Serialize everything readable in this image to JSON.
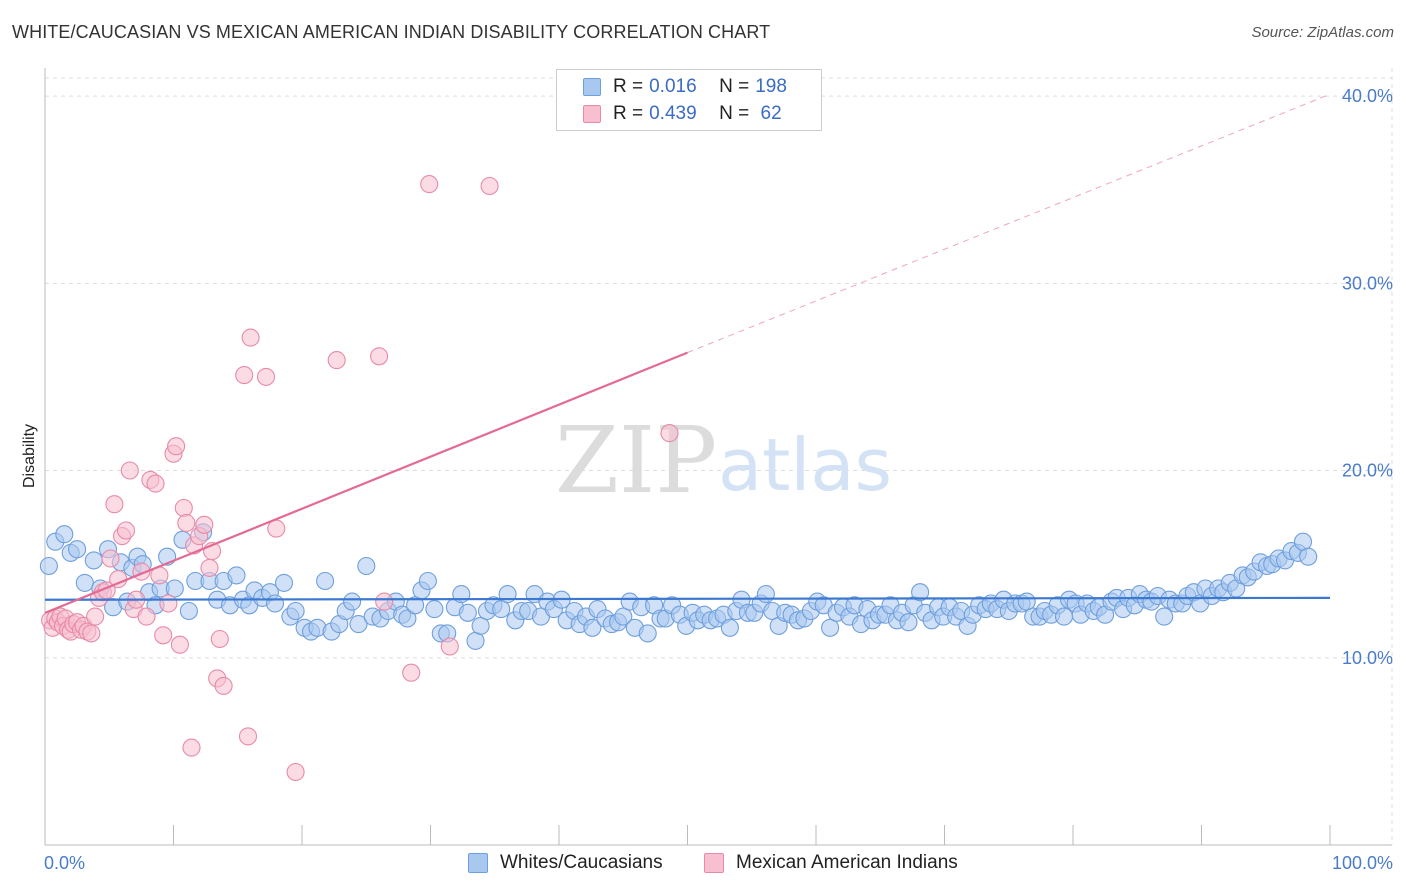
{
  "header": {
    "title": "WHITE/CAUCASIAN VS MEXICAN AMERICAN INDIAN DISABILITY CORRELATION CHART",
    "source": "Source: ZipAtlas.com"
  },
  "watermark": {
    "zip": "ZIP",
    "atlas": "atlas"
  },
  "legend": {
    "rows": [
      {
        "r_label": "R = ",
        "r_value": "0.016",
        "n_label": "N = ",
        "n_value": "198",
        "color": "#a9c8f0",
        "border": "#6f9fdc"
      },
      {
        "r_label": "R = ",
        "r_value": "0.439",
        "n_label": "N = ",
        "n_value": " 62",
        "color": "#f8bfd0",
        "border": "#e88aa8"
      }
    ]
  },
  "bottom_legend": {
    "items": [
      {
        "label": "Whites/Caucasians",
        "color": "#a9c8f0",
        "border": "#6f9fdc"
      },
      {
        "label": "Mexican American Indians",
        "color": "#f8bfd0",
        "border": "#e88aa8"
      }
    ]
  },
  "chart_data": {
    "type": "scatter",
    "title": "WHITE/CAUCASIAN VS MEXICAN AMERICAN INDIAN DISABILITY CORRELATION CHART",
    "xlabel": "",
    "ylabel": "Disability",
    "xlim": [
      0,
      100
    ],
    "ylim": [
      0,
      41.5
    ],
    "x_tick_labels": [
      "0.0%",
      "100.0%"
    ],
    "y_ticks": [
      10,
      20,
      30,
      40
    ],
    "y_tick_labels": [
      "10.0%",
      "20.0%",
      "30.0%",
      "40.0%"
    ],
    "grid": true,
    "series": [
      {
        "name": "Whites/Caucasians",
        "color": "#a9c8f0",
        "edge": "#6f9fdc",
        "line_color": "#3b78d1",
        "trend": {
          "x0": 0,
          "y0": 13.1,
          "x1": 100,
          "y1": 13.2
        },
        "points": [
          [
            0.3,
            14.9
          ],
          [
            0.8,
            16.2
          ],
          [
            1.5,
            16.6
          ],
          [
            2.0,
            15.6
          ],
          [
            2.5,
            15.8
          ],
          [
            3.1,
            14.0
          ],
          [
            3.8,
            15.2
          ],
          [
            4.3,
            13.7
          ],
          [
            4.9,
            15.8
          ],
          [
            5.3,
            12.7
          ],
          [
            5.9,
            15.1
          ],
          [
            6.4,
            13.0
          ],
          [
            6.8,
            14.8
          ],
          [
            7.2,
            15.4
          ],
          [
            7.6,
            15.0
          ],
          [
            8.1,
            13.5
          ],
          [
            8.6,
            12.8
          ],
          [
            9.0,
            13.7
          ],
          [
            9.5,
            15.4
          ],
          [
            10.1,
            13.7
          ],
          [
            10.7,
            16.3
          ],
          [
            11.2,
            12.5
          ],
          [
            11.7,
            14.1
          ],
          [
            12.3,
            16.7
          ],
          [
            12.8,
            14.1
          ],
          [
            13.4,
            13.1
          ],
          [
            13.9,
            14.1
          ],
          [
            14.4,
            12.8
          ],
          [
            14.9,
            14.4
          ],
          [
            15.4,
            13.1
          ],
          [
            15.9,
            12.8
          ],
          [
            16.3,
            13.6
          ],
          [
            16.9,
            13.2
          ],
          [
            17.5,
            13.5
          ],
          [
            17.9,
            12.9
          ],
          [
            18.6,
            14.0
          ],
          [
            19.1,
            12.2
          ],
          [
            19.5,
            12.5
          ],
          [
            20.2,
            11.6
          ],
          [
            20.7,
            11.4
          ],
          [
            21.2,
            11.6
          ],
          [
            21.8,
            14.1
          ],
          [
            22.3,
            11.4
          ],
          [
            22.9,
            11.8
          ],
          [
            23.4,
            12.5
          ],
          [
            23.9,
            13.0
          ],
          [
            24.4,
            11.8
          ],
          [
            25.0,
            14.9
          ],
          [
            25.5,
            12.2
          ],
          [
            26.1,
            12.1
          ],
          [
            26.7,
            12.5
          ],
          [
            27.3,
            13.0
          ],
          [
            27.8,
            12.3
          ],
          [
            28.2,
            12.1
          ],
          [
            28.8,
            12.8
          ],
          [
            29.3,
            13.6
          ],
          [
            29.8,
            14.1
          ],
          [
            30.3,
            12.6
          ],
          [
            30.8,
            11.3
          ],
          [
            31.3,
            11.3
          ],
          [
            31.9,
            12.7
          ],
          [
            32.4,
            13.4
          ],
          [
            32.9,
            12.4
          ],
          [
            33.5,
            10.9
          ],
          [
            33.9,
            11.7
          ],
          [
            34.4,
            12.5
          ],
          [
            34.9,
            12.8
          ],
          [
            35.5,
            12.6
          ],
          [
            36.0,
            13.4
          ],
          [
            36.6,
            12.0
          ],
          [
            37.1,
            12.5
          ],
          [
            37.6,
            12.5
          ],
          [
            38.1,
            13.4
          ],
          [
            38.6,
            12.2
          ],
          [
            39.1,
            13.0
          ],
          [
            39.6,
            12.6
          ],
          [
            40.2,
            13.1
          ],
          [
            40.6,
            12.0
          ],
          [
            41.2,
            12.5
          ],
          [
            41.6,
            11.8
          ],
          [
            42.1,
            12.2
          ],
          [
            42.6,
            11.6
          ],
          [
            43.0,
            12.6
          ],
          [
            43.6,
            12.1
          ],
          [
            44.1,
            11.8
          ],
          [
            44.6,
            11.9
          ],
          [
            45.0,
            12.2
          ],
          [
            45.5,
            13.0
          ],
          [
            45.9,
            11.6
          ],
          [
            46.4,
            12.7
          ],
          [
            46.9,
            11.3
          ],
          [
            47.4,
            12.8
          ],
          [
            47.9,
            12.1
          ],
          [
            48.3,
            12.1
          ],
          [
            48.8,
            12.8
          ],
          [
            49.4,
            12.3
          ],
          [
            49.9,
            11.7
          ],
          [
            50.4,
            12.4
          ],
          [
            50.8,
            12.0
          ],
          [
            51.3,
            12.3
          ],
          [
            51.8,
            12.0
          ],
          [
            52.3,
            12.1
          ],
          [
            52.8,
            12.3
          ],
          [
            53.3,
            11.6
          ],
          [
            53.8,
            12.5
          ],
          [
            54.2,
            13.1
          ],
          [
            54.7,
            12.4
          ],
          [
            55.2,
            12.4
          ],
          [
            55.7,
            12.9
          ],
          [
            56.1,
            13.4
          ],
          [
            56.6,
            12.5
          ],
          [
            57.1,
            11.7
          ],
          [
            57.6,
            12.4
          ],
          [
            58.1,
            12.3
          ],
          [
            58.6,
            12.0
          ],
          [
            59.1,
            12.1
          ],
          [
            59.6,
            12.5
          ],
          [
            60.1,
            13.0
          ],
          [
            60.6,
            12.8
          ],
          [
            61.1,
            11.6
          ],
          [
            61.6,
            12.4
          ],
          [
            62.1,
            12.7
          ],
          [
            62.6,
            12.2
          ],
          [
            63.0,
            12.8
          ],
          [
            63.5,
            11.8
          ],
          [
            64.0,
            12.6
          ],
          [
            64.4,
            12.0
          ],
          [
            64.9,
            12.3
          ],
          [
            65.4,
            12.3
          ],
          [
            65.8,
            12.8
          ],
          [
            66.3,
            12.0
          ],
          [
            66.7,
            12.4
          ],
          [
            67.2,
            11.9
          ],
          [
            67.6,
            12.8
          ],
          [
            68.1,
            13.5
          ],
          [
            68.5,
            12.4
          ],
          [
            69.0,
            12.0
          ],
          [
            69.5,
            12.7
          ],
          [
            69.9,
            12.2
          ],
          [
            70.4,
            12.7
          ],
          [
            70.9,
            12.2
          ],
          [
            71.3,
            12.5
          ],
          [
            71.8,
            11.7
          ],
          [
            72.2,
            12.3
          ],
          [
            72.7,
            12.8
          ],
          [
            73.2,
            12.6
          ],
          [
            73.6,
            12.9
          ],
          [
            74.1,
            12.6
          ],
          [
            74.6,
            13.1
          ],
          [
            75.0,
            12.5
          ],
          [
            75.5,
            12.9
          ],
          [
            76.0,
            12.9
          ],
          [
            76.4,
            13.0
          ],
          [
            76.9,
            12.2
          ],
          [
            77.4,
            12.2
          ],
          [
            77.8,
            12.5
          ],
          [
            78.3,
            12.3
          ],
          [
            78.8,
            12.8
          ],
          [
            79.3,
            12.2
          ],
          [
            79.7,
            13.1
          ],
          [
            80.2,
            12.9
          ],
          [
            80.6,
            12.3
          ],
          [
            81.1,
            12.9
          ],
          [
            81.6,
            12.5
          ],
          [
            82.0,
            12.7
          ],
          [
            82.5,
            12.3
          ],
          [
            83.0,
            13.0
          ],
          [
            83.4,
            13.2
          ],
          [
            83.9,
            12.6
          ],
          [
            84.3,
            13.2
          ],
          [
            84.8,
            12.8
          ],
          [
            85.2,
            13.4
          ],
          [
            85.7,
            13.1
          ],
          [
            86.1,
            13.0
          ],
          [
            86.6,
            13.3
          ],
          [
            87.1,
            12.2
          ],
          [
            87.5,
            13.1
          ],
          [
            88.0,
            12.9
          ],
          [
            88.5,
            12.9
          ],
          [
            88.9,
            13.3
          ],
          [
            89.4,
            13.5
          ],
          [
            89.9,
            12.9
          ],
          [
            90.3,
            13.7
          ],
          [
            90.8,
            13.3
          ],
          [
            91.3,
            13.7
          ],
          [
            91.7,
            13.5
          ],
          [
            92.2,
            14.0
          ],
          [
            92.7,
            13.7
          ],
          [
            93.2,
            14.4
          ],
          [
            93.6,
            14.3
          ],
          [
            94.1,
            14.6
          ],
          [
            94.6,
            15.1
          ],
          [
            95.1,
            14.9
          ],
          [
            95.5,
            15.0
          ],
          [
            96.0,
            15.3
          ],
          [
            96.5,
            15.2
          ],
          [
            97.0,
            15.7
          ],
          [
            97.5,
            15.6
          ],
          [
            97.9,
            16.2
          ],
          [
            98.3,
            15.4
          ]
        ]
      },
      {
        "name": "Mexican American Indians",
        "color": "#f8bfd0",
        "edge": "#e88aa8",
        "line_color": "#e36a95",
        "trend": {
          "x0": 0,
          "y0": 12.4,
          "x1": 50,
          "y1": 26.3,
          "x_dash_end": 100,
          "y_dash_end": 40.1
        },
        "points": [
          [
            0.4,
            12.0
          ],
          [
            0.6,
            11.6
          ],
          [
            0.8,
            12.1
          ],
          [
            1.0,
            11.9
          ],
          [
            1.2,
            12.2
          ],
          [
            1.4,
            11.7
          ],
          [
            1.6,
            12.1
          ],
          [
            1.8,
            11.5
          ],
          [
            2.0,
            11.4
          ],
          [
            2.2,
            11.8
          ],
          [
            2.5,
            11.9
          ],
          [
            2.8,
            11.5
          ],
          [
            3.0,
            11.7
          ],
          [
            3.3,
            11.4
          ],
          [
            3.6,
            11.3
          ],
          [
            3.9,
            12.2
          ],
          [
            4.2,
            13.2
          ],
          [
            4.5,
            13.5
          ],
          [
            4.8,
            13.6
          ],
          [
            5.1,
            15.3
          ],
          [
            5.4,
            18.2
          ],
          [
            5.7,
            14.2
          ],
          [
            6.0,
            16.5
          ],
          [
            6.3,
            16.8
          ],
          [
            6.6,
            20.0
          ],
          [
            6.9,
            12.6
          ],
          [
            7.1,
            13.1
          ],
          [
            7.5,
            14.6
          ],
          [
            7.9,
            12.2
          ],
          [
            8.2,
            19.5
          ],
          [
            8.6,
            19.3
          ],
          [
            8.9,
            14.4
          ],
          [
            9.2,
            11.2
          ],
          [
            9.6,
            12.9
          ],
          [
            10.0,
            20.9
          ],
          [
            10.2,
            21.3
          ],
          [
            10.5,
            10.7
          ],
          [
            10.8,
            18.0
          ],
          [
            11.0,
            17.2
          ],
          [
            11.4,
            5.2
          ],
          [
            11.6,
            16.0
          ],
          [
            12.0,
            16.5
          ],
          [
            12.4,
            17.1
          ],
          [
            12.8,
            14.8
          ],
          [
            13.0,
            15.7
          ],
          [
            13.4,
            8.9
          ],
          [
            13.6,
            11.0
          ],
          [
            13.9,
            8.5
          ],
          [
            15.5,
            25.1
          ],
          [
            15.8,
            5.8
          ],
          [
            16.0,
            27.1
          ],
          [
            17.2,
            25.0
          ],
          [
            18.0,
            16.9
          ],
          [
            19.5,
            3.9
          ],
          [
            22.7,
            25.9
          ],
          [
            26.0,
            26.1
          ],
          [
            26.4,
            13.0
          ],
          [
            28.5,
            9.2
          ],
          [
            29.9,
            35.3
          ],
          [
            31.5,
            10.6
          ],
          [
            34.6,
            35.2
          ],
          [
            48.6,
            22.0
          ]
        ]
      }
    ]
  }
}
